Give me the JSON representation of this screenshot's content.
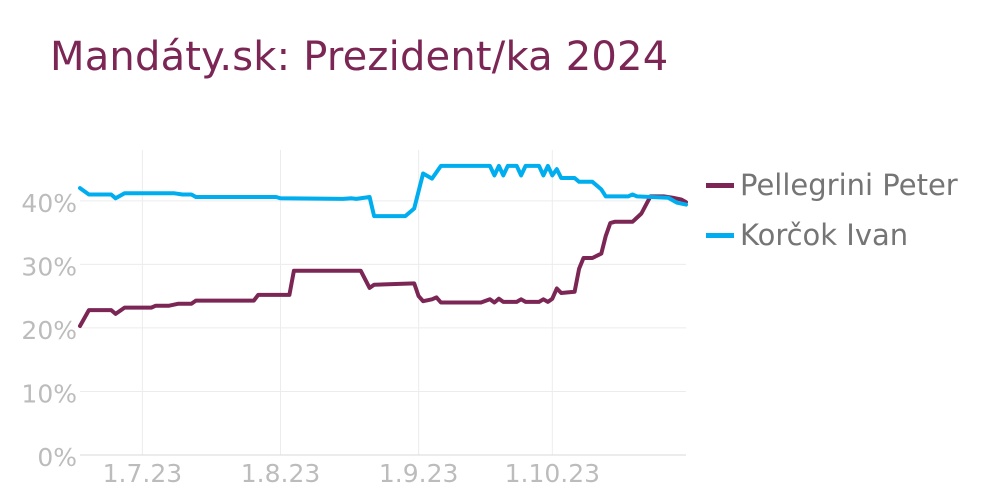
{
  "title": "Mandáty.sk: Prezident/ka 2024",
  "chart_data": {
    "type": "line",
    "title": "Mandáty.sk: Prezident/ka 2024",
    "xlabel": "",
    "ylabel": "",
    "x_range": [
      "2023-06-17",
      "2023-10-31"
    ],
    "ylim": [
      0,
      0.48
    ],
    "x_ticks": [
      {
        "date": "2023-07-01",
        "label": "1.7.23"
      },
      {
        "date": "2023-08-01",
        "label": "1.8.23"
      },
      {
        "date": "2023-09-01",
        "label": "1.9.23"
      },
      {
        "date": "2023-10-01",
        "label": "1.10.23"
      }
    ],
    "y_ticks": [
      {
        "value": 0,
        "label": "0%"
      },
      {
        "value": 0.1,
        "label": "10%"
      },
      {
        "value": 0.2,
        "label": "20%"
      },
      {
        "value": 0.3,
        "label": "30%"
      },
      {
        "value": 0.4,
        "label": "40%"
      }
    ],
    "grid": true,
    "legend_position": "right",
    "series": [
      {
        "name": "Pellegrini Peter",
        "color": "#7b2654",
        "points": [
          [
            "2023-06-17",
            0.203
          ],
          [
            "2023-06-19",
            0.228
          ],
          [
            "2023-06-24",
            0.228
          ],
          [
            "2023-06-25",
            0.222
          ],
          [
            "2023-06-27",
            0.232
          ],
          [
            "2023-07-03",
            0.232
          ],
          [
            "2023-07-04",
            0.235
          ],
          [
            "2023-07-07",
            0.235
          ],
          [
            "2023-07-09",
            0.238
          ],
          [
            "2023-07-12",
            0.238
          ],
          [
            "2023-07-13",
            0.243
          ],
          [
            "2023-07-26",
            0.243
          ],
          [
            "2023-07-27",
            0.252
          ],
          [
            "2023-08-03",
            0.252
          ],
          [
            "2023-08-04",
            0.29
          ],
          [
            "2023-08-19",
            0.29
          ],
          [
            "2023-08-21",
            0.263
          ],
          [
            "2023-08-22",
            0.268
          ],
          [
            "2023-08-31",
            0.27
          ],
          [
            "2023-09-01",
            0.25
          ],
          [
            "2023-09-02",
            0.242
          ],
          [
            "2023-09-04",
            0.245
          ],
          [
            "2023-09-05",
            0.248
          ],
          [
            "2023-09-06",
            0.24
          ],
          [
            "2023-09-15",
            0.24
          ],
          [
            "2023-09-17",
            0.245
          ],
          [
            "2023-09-18",
            0.24
          ],
          [
            "2023-09-19",
            0.246
          ],
          [
            "2023-09-20",
            0.241
          ],
          [
            "2023-09-23",
            0.241
          ],
          [
            "2023-09-24",
            0.245
          ],
          [
            "2023-09-25",
            0.241
          ],
          [
            "2023-09-28",
            0.241
          ],
          [
            "2023-09-29",
            0.245
          ],
          [
            "2023-09-30",
            0.241
          ],
          [
            "2023-10-01",
            0.246
          ],
          [
            "2023-10-02",
            0.262
          ],
          [
            "2023-10-03",
            0.255
          ],
          [
            "2023-10-06",
            0.257
          ],
          [
            "2023-10-07",
            0.293
          ],
          [
            "2023-10-08",
            0.31
          ],
          [
            "2023-10-10",
            0.31
          ],
          [
            "2023-10-12",
            0.317
          ],
          [
            "2023-10-13",
            0.345
          ],
          [
            "2023-10-14",
            0.365
          ],
          [
            "2023-10-15",
            0.367
          ],
          [
            "2023-10-19",
            0.367
          ],
          [
            "2023-10-21",
            0.38
          ],
          [
            "2023-10-23",
            0.407
          ],
          [
            "2023-10-26",
            0.407
          ],
          [
            "2023-10-28",
            0.405
          ],
          [
            "2023-10-30",
            0.402
          ],
          [
            "2023-10-31",
            0.398
          ]
        ]
      },
      {
        "name": "Korčok Ivan",
        "color": "#00aeef",
        "points": [
          [
            "2023-06-17",
            0.42
          ],
          [
            "2023-06-19",
            0.41
          ],
          [
            "2023-06-24",
            0.41
          ],
          [
            "2023-06-25",
            0.404
          ],
          [
            "2023-06-27",
            0.412
          ],
          [
            "2023-07-08",
            0.412
          ],
          [
            "2023-07-10",
            0.41
          ],
          [
            "2023-07-12",
            0.41
          ],
          [
            "2023-07-13",
            0.406
          ],
          [
            "2023-07-31",
            0.406
          ],
          [
            "2023-08-01",
            0.404
          ],
          [
            "2023-08-15",
            0.403
          ],
          [
            "2023-08-17",
            0.404
          ],
          [
            "2023-08-18",
            0.403
          ],
          [
            "2023-08-21",
            0.406
          ],
          [
            "2023-08-22",
            0.376
          ],
          [
            "2023-08-29",
            0.376
          ],
          [
            "2023-08-31",
            0.388
          ],
          [
            "2023-09-02",
            0.443
          ],
          [
            "2023-09-04",
            0.435
          ],
          [
            "2023-09-06",
            0.455
          ],
          [
            "2023-09-17",
            0.455
          ],
          [
            "2023-09-18",
            0.44
          ],
          [
            "2023-09-19",
            0.455
          ],
          [
            "2023-09-20",
            0.44
          ],
          [
            "2023-09-21",
            0.455
          ],
          [
            "2023-09-23",
            0.455
          ],
          [
            "2023-09-24",
            0.44
          ],
          [
            "2023-09-25",
            0.455
          ],
          [
            "2023-09-28",
            0.455
          ],
          [
            "2023-09-29",
            0.44
          ],
          [
            "2023-09-30",
            0.455
          ],
          [
            "2023-10-01",
            0.44
          ],
          [
            "2023-10-02",
            0.45
          ],
          [
            "2023-10-03",
            0.436
          ],
          [
            "2023-10-06",
            0.436
          ],
          [
            "2023-10-07",
            0.43
          ],
          [
            "2023-10-10",
            0.43
          ],
          [
            "2023-10-12",
            0.418
          ],
          [
            "2023-10-13",
            0.407
          ],
          [
            "2023-10-18",
            0.407
          ],
          [
            "2023-10-19",
            0.41
          ],
          [
            "2023-10-20",
            0.407
          ],
          [
            "2023-10-27",
            0.405
          ],
          [
            "2023-10-29",
            0.397
          ],
          [
            "2023-10-31",
            0.394
          ]
        ]
      }
    ]
  }
}
